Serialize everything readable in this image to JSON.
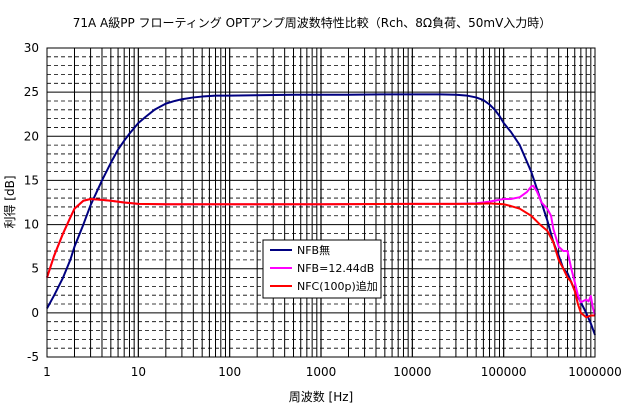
{
  "chart_data": {
    "type": "line",
    "title": "71A A級PP フローティング OPTアンプ周波数特性比較（Rch、8Ω負荷、50mV入力時）",
    "xlabel": "周波数 [Hz]",
    "ylabel": "利得 [dB]",
    "x_scale": "log",
    "xlim": [
      1,
      1000000
    ],
    "ylim": [
      -5,
      30
    ],
    "x_ticks": [
      "1",
      "10",
      "100",
      "1000",
      "10000",
      "100000",
      "1000000"
    ],
    "y_ticks": [
      "-5",
      "0",
      "5",
      "10",
      "15",
      "20",
      "25",
      "30"
    ],
    "grid": true,
    "legend_position": "center-left-lower",
    "series": [
      {
        "name": "NFB無",
        "color": "#000080",
        "points": [
          [
            1,
            0.5
          ],
          [
            1.2,
            2
          ],
          [
            1.5,
            4
          ],
          [
            1.8,
            6
          ],
          [
            2,
            7.5
          ],
          [
            2.5,
            10
          ],
          [
            3,
            12.2
          ],
          [
            4,
            15
          ],
          [
            5,
            17
          ],
          [
            6,
            18.5
          ],
          [
            7,
            19.5
          ],
          [
            8,
            20.3
          ],
          [
            10,
            21.5
          ],
          [
            12,
            22.2
          ],
          [
            15,
            23
          ],
          [
            20,
            23.7
          ],
          [
            25,
            24
          ],
          [
            30,
            24.2
          ],
          [
            40,
            24.4
          ],
          [
            50,
            24.5
          ],
          [
            70,
            24.6
          ],
          [
            100,
            24.6
          ],
          [
            200,
            24.65
          ],
          [
            500,
            24.7
          ],
          [
            1000,
            24.7
          ],
          [
            2000,
            24.7
          ],
          [
            5000,
            24.75
          ],
          [
            10000,
            24.75
          ],
          [
            20000,
            24.75
          ],
          [
            30000,
            24.7
          ],
          [
            40000,
            24.6
          ],
          [
            50000,
            24.4
          ],
          [
            60000,
            24.1
          ],
          [
            70000,
            23.6
          ],
          [
            80000,
            23
          ],
          [
            90000,
            22.3
          ],
          [
            100000,
            21.5
          ],
          [
            120000,
            20.5
          ],
          [
            150000,
            19
          ],
          [
            200000,
            16
          ],
          [
            250000,
            13
          ],
          [
            300000,
            10.5
          ],
          [
            350000,
            8
          ],
          [
            400000,
            6.5
          ],
          [
            450000,
            5
          ],
          [
            500000,
            4.5
          ],
          [
            600000,
            2.5
          ],
          [
            700000,
            1.2
          ],
          [
            800000,
            0
          ],
          [
            900000,
            -1.2
          ],
          [
            1000000,
            -2.5
          ]
        ]
      },
      {
        "name": "NFB=12.44dB",
        "color": "#FF00FF",
        "points": [
          [
            1,
            4
          ],
          [
            1.2,
            6.5
          ],
          [
            1.5,
            9
          ],
          [
            1.8,
            10.8
          ],
          [
            2,
            11.8
          ],
          [
            2.5,
            12.7
          ],
          [
            3,
            12.9
          ],
          [
            4,
            12.8
          ],
          [
            5,
            12.7
          ],
          [
            7,
            12.5
          ],
          [
            10,
            12.35
          ],
          [
            20,
            12.3
          ],
          [
            50,
            12.3
          ],
          [
            100,
            12.3
          ],
          [
            1000,
            12.3
          ],
          [
            10000,
            12.35
          ],
          [
            30000,
            12.35
          ],
          [
            50000,
            12.4
          ],
          [
            70000,
            12.6
          ],
          [
            100000,
            12.9
          ],
          [
            120000,
            12.9
          ],
          [
            150000,
            13.1
          ],
          [
            180000,
            13.7
          ],
          [
            200000,
            14.3
          ],
          [
            210000,
            14.4
          ],
          [
            230000,
            13.8
          ],
          [
            260000,
            12.5
          ],
          [
            300000,
            11.8
          ],
          [
            330000,
            11
          ],
          [
            350000,
            9.5
          ],
          [
            400000,
            7.5
          ],
          [
            450000,
            7
          ],
          [
            500000,
            7
          ],
          [
            550000,
            5
          ],
          [
            600000,
            3.5
          ],
          [
            650000,
            2
          ],
          [
            700000,
            1.2
          ],
          [
            800000,
            1.5
          ],
          [
            850000,
            1.3
          ],
          [
            900000,
            1.9
          ],
          [
            950000,
            0.5
          ],
          [
            1000000,
            -0.2
          ]
        ]
      },
      {
        "name": "NFC(100p)追加",
        "color": "#FF0000",
        "points": [
          [
            1,
            4
          ],
          [
            1.2,
            6.5
          ],
          [
            1.5,
            9
          ],
          [
            1.8,
            10.8
          ],
          [
            2,
            11.8
          ],
          [
            2.5,
            12.7
          ],
          [
            3,
            12.9
          ],
          [
            4,
            12.8
          ],
          [
            5,
            12.7
          ],
          [
            7,
            12.5
          ],
          [
            10,
            12.35
          ],
          [
            20,
            12.3
          ],
          [
            50,
            12.3
          ],
          [
            100,
            12.3
          ],
          [
            1000,
            12.3
          ],
          [
            10000,
            12.35
          ],
          [
            30000,
            12.35
          ],
          [
            50000,
            12.35
          ],
          [
            70000,
            12.4
          ],
          [
            100000,
            12.3
          ],
          [
            120000,
            12.1
          ],
          [
            150000,
            11.8
          ],
          [
            200000,
            11
          ],
          [
            250000,
            10
          ],
          [
            300000,
            9.3
          ],
          [
            350000,
            8
          ],
          [
            400000,
            6
          ],
          [
            450000,
            5
          ],
          [
            500000,
            4
          ],
          [
            550000,
            3.5
          ],
          [
            600000,
            2.5
          ],
          [
            650000,
            1
          ],
          [
            700000,
            0
          ],
          [
            800000,
            -0.5
          ],
          [
            900000,
            -0.3
          ],
          [
            1000000,
            -0.3
          ]
        ]
      }
    ]
  }
}
